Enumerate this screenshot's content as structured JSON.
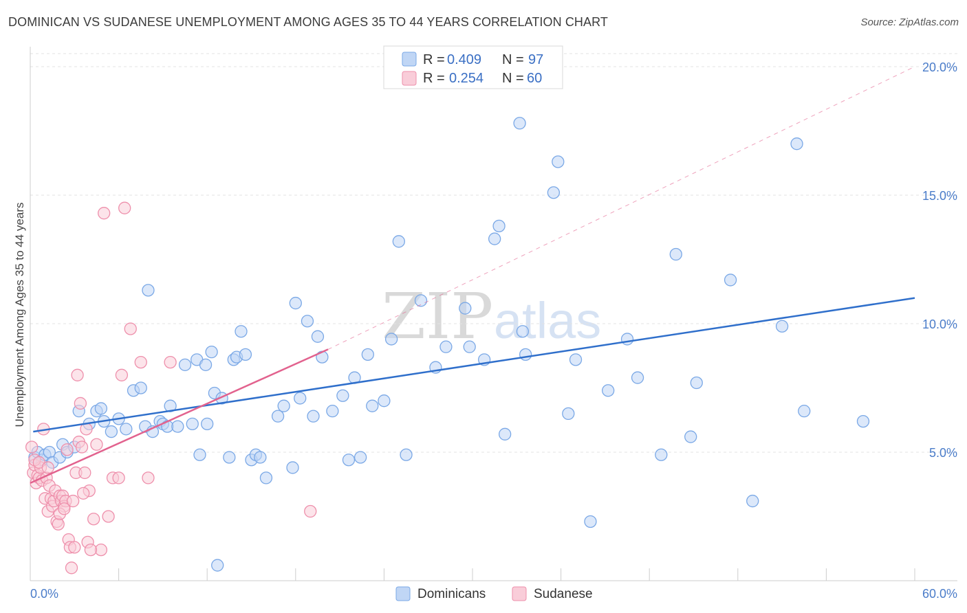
{
  "title": "DOMINICAN VS SUDANESE UNEMPLOYMENT AMONG AGES 35 TO 44 YEARS CORRELATION CHART",
  "source": "Source: ZipAtlas.com",
  "watermark": {
    "zip": "ZIP",
    "atlas": "atlas"
  },
  "chart_data": {
    "type": "scatter",
    "title": "DOMINICAN VS SUDANESE UNEMPLOYMENT AMONG AGES 35 TO 44 YEARS CORRELATION CHART",
    "xlabel": "",
    "ylabel": "Unemployment Among Ages 35 to 44 years",
    "xlim": [
      0,
      60
    ],
    "ylim": [
      0,
      20
    ],
    "x_tick_labels": {
      "min": "0.0%",
      "max": "60.0%"
    },
    "y_ticks": [
      5,
      10,
      15,
      20
    ],
    "y_tick_labels": [
      "5.0%",
      "10.0%",
      "15.0%",
      "20.0%"
    ],
    "legend_top": [
      {
        "r_label": "R =",
        "r_value": "0.409",
        "n_label": "N =",
        "n_value": "97",
        "color": "#9dbfee"
      },
      {
        "r_label": "R =",
        "r_value": "0.254",
        "n_label": "N =",
        "n_value": "60",
        "color": "#f4a9bf"
      }
    ],
    "series": [
      {
        "name": "Dominicans",
        "color": "#7aa8e6",
        "fill": "#c0d6f5",
        "line_color": "#2f6fcb",
        "trend": {
          "x0": 0.2,
          "y0": 5.8,
          "x1": 60,
          "y1": 11.0
        },
        "points": [
          [
            0.3,
            4.8
          ],
          [
            0.5,
            5.0
          ],
          [
            0.8,
            4.7
          ],
          [
            1.0,
            4.9
          ],
          [
            1.3,
            5.0
          ],
          [
            1.5,
            4.6
          ],
          [
            2.0,
            4.8
          ],
          [
            2.2,
            5.3
          ],
          [
            2.5,
            5.0
          ],
          [
            3.0,
            5.2
          ],
          [
            3.3,
            6.6
          ],
          [
            4.0,
            6.1
          ],
          [
            4.5,
            6.6
          ],
          [
            4.8,
            6.7
          ],
          [
            5.0,
            6.2
          ],
          [
            5.5,
            5.8
          ],
          [
            6.0,
            6.3
          ],
          [
            6.5,
            5.9
          ],
          [
            7.0,
            7.4
          ],
          [
            7.5,
            7.5
          ],
          [
            7.8,
            6.0
          ],
          [
            8.0,
            11.3
          ],
          [
            8.3,
            5.8
          ],
          [
            8.8,
            6.2
          ],
          [
            9.0,
            6.1
          ],
          [
            9.3,
            6.0
          ],
          [
            9.5,
            6.8
          ],
          [
            10.0,
            6.0
          ],
          [
            10.5,
            8.4
          ],
          [
            11.0,
            6.1
          ],
          [
            11.3,
            8.6
          ],
          [
            11.5,
            4.9
          ],
          [
            11.9,
            8.4
          ],
          [
            12.0,
            6.1
          ],
          [
            12.3,
            8.9
          ],
          [
            12.5,
            7.3
          ],
          [
            12.7,
            0.6
          ],
          [
            13.0,
            7.1
          ],
          [
            13.5,
            4.8
          ],
          [
            13.8,
            8.6
          ],
          [
            14.0,
            8.7
          ],
          [
            14.3,
            9.7
          ],
          [
            14.6,
            8.8
          ],
          [
            15.0,
            4.7
          ],
          [
            15.3,
            4.9
          ],
          [
            15.6,
            4.8
          ],
          [
            16.0,
            4.0
          ],
          [
            16.8,
            6.4
          ],
          [
            17.2,
            6.8
          ],
          [
            17.8,
            4.4
          ],
          [
            18.0,
            10.8
          ],
          [
            18.3,
            7.1
          ],
          [
            18.8,
            10.1
          ],
          [
            19.2,
            6.4
          ],
          [
            19.5,
            9.5
          ],
          [
            19.8,
            8.7
          ],
          [
            20.5,
            6.6
          ],
          [
            21.2,
            7.2
          ],
          [
            21.6,
            4.7
          ],
          [
            22.0,
            7.9
          ],
          [
            22.4,
            4.8
          ],
          [
            22.9,
            8.8
          ],
          [
            23.2,
            6.8
          ],
          [
            24.0,
            7.0
          ],
          [
            24.5,
            9.4
          ],
          [
            25.0,
            13.2
          ],
          [
            25.5,
            4.9
          ],
          [
            26.5,
            10.9
          ],
          [
            27.5,
            8.3
          ],
          [
            28.2,
            9.1
          ],
          [
            29.5,
            10.6
          ],
          [
            29.8,
            9.1
          ],
          [
            30.8,
            8.6
          ],
          [
            31.5,
            13.3
          ],
          [
            31.8,
            13.8
          ],
          [
            32.2,
            5.7
          ],
          [
            33.2,
            17.8
          ],
          [
            33.4,
            9.7
          ],
          [
            33.6,
            8.8
          ],
          [
            35.5,
            15.1
          ],
          [
            35.8,
            16.3
          ],
          [
            36.5,
            6.5
          ],
          [
            37.0,
            8.6
          ],
          [
            38.0,
            2.3
          ],
          [
            39.2,
            7.4
          ],
          [
            40.5,
            9.4
          ],
          [
            41.2,
            7.9
          ],
          [
            42.8,
            4.9
          ],
          [
            43.8,
            12.7
          ],
          [
            44.8,
            5.6
          ],
          [
            45.2,
            7.7
          ],
          [
            47.5,
            11.7
          ],
          [
            49.0,
            3.1
          ],
          [
            51.0,
            9.9
          ],
          [
            52.0,
            17.0
          ],
          [
            52.5,
            6.6
          ],
          [
            56.5,
            6.2
          ]
        ]
      },
      {
        "name": "Sudanese",
        "color": "#ee8fab",
        "fill": "#f9cdd9",
        "line_color": "#e2628e",
        "trend": {
          "x0": 0.0,
          "y0": 3.8,
          "x1": 20.2,
          "y1": 9.0
        },
        "dashed_extension": {
          "x0": 20.2,
          "y0": 9.0,
          "x1": 60,
          "y1": 20.0
        },
        "points": [
          [
            0.1,
            5.2
          ],
          [
            0.2,
            4.2
          ],
          [
            0.3,
            4.5
          ],
          [
            0.4,
            3.8
          ],
          [
            0.5,
            4.1
          ],
          [
            0.6,
            4.0
          ],
          [
            0.7,
            4.4
          ],
          [
            0.8,
            3.9
          ],
          [
            0.9,
            5.9
          ],
          [
            1.0,
            3.2
          ],
          [
            1.1,
            4.0
          ],
          [
            1.2,
            2.7
          ],
          [
            1.3,
            3.7
          ],
          [
            1.4,
            3.2
          ],
          [
            1.5,
            2.9
          ],
          [
            1.6,
            3.1
          ],
          [
            1.7,
            3.5
          ],
          [
            1.8,
            2.3
          ],
          [
            1.9,
            2.2
          ],
          [
            2.0,
            3.3
          ],
          [
            2.1,
            3.1
          ],
          [
            2.2,
            3.3
          ],
          [
            2.3,
            2.9
          ],
          [
            2.4,
            3.1
          ],
          [
            2.5,
            5.1
          ],
          [
            2.6,
            1.6
          ],
          [
            2.7,
            1.3
          ],
          [
            2.8,
            0.5
          ],
          [
            2.9,
            3.1
          ],
          [
            3.0,
            1.3
          ],
          [
            3.1,
            4.2
          ],
          [
            3.2,
            8.0
          ],
          [
            3.3,
            5.4
          ],
          [
            3.4,
            6.9
          ],
          [
            3.5,
            5.2
          ],
          [
            3.7,
            4.2
          ],
          [
            3.8,
            5.9
          ],
          [
            3.9,
            1.5
          ],
          [
            4.0,
            3.5
          ],
          [
            4.3,
            2.4
          ],
          [
            4.5,
            5.3
          ],
          [
            4.8,
            1.2
          ],
          [
            5.0,
            14.3
          ],
          [
            5.3,
            2.5
          ],
          [
            5.6,
            4.0
          ],
          [
            6.0,
            4.0
          ],
          [
            6.2,
            8.0
          ],
          [
            6.4,
            14.5
          ],
          [
            6.8,
            9.8
          ],
          [
            7.5,
            8.5
          ],
          [
            8.0,
            4.0
          ],
          [
            0.3,
            4.7
          ],
          [
            0.6,
            4.6
          ],
          [
            1.2,
            4.4
          ],
          [
            2.0,
            2.6
          ],
          [
            2.3,
            2.8
          ],
          [
            3.6,
            3.4
          ],
          [
            4.1,
            1.2
          ],
          [
            19.0,
            2.7
          ],
          [
            9.5,
            8.5
          ]
        ]
      }
    ]
  },
  "bottom_legend": [
    {
      "label": "Dominicans"
    },
    {
      "label": "Sudanese"
    }
  ]
}
